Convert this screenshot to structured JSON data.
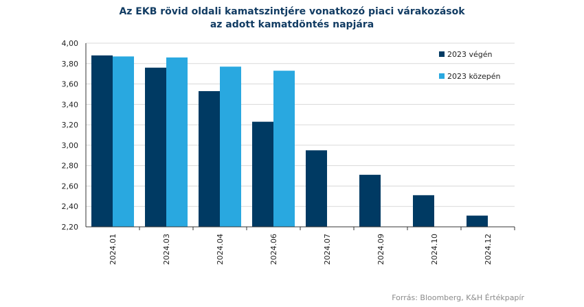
{
  "chart_data": {
    "type": "bar",
    "title": [
      "Az EKB rövid oldali kamatszintjére vonatkozó piaci várakozások",
      "az adott kamatdöntés napjára"
    ],
    "categories": [
      "2024.01",
      "2024.03",
      "2024.04",
      "2024.06",
      "2024.07",
      "2024.09",
      "2024.10",
      "2024.12"
    ],
    "series": [
      {
        "name": "2023 végén",
        "color": "#003a63",
        "values": [
          3.88,
          3.76,
          3.53,
          3.23,
          2.95,
          2.71,
          2.51,
          2.31
        ]
      },
      {
        "name": "2023 közepén",
        "color": "#29a8e0",
        "values": [
          3.87,
          3.86,
          3.77,
          3.73,
          null,
          null,
          null,
          null
        ]
      }
    ],
    "yticks": [
      "4,00",
      "3,80",
      "3,60",
      "3,40",
      "3,20",
      "3,00",
      "2,80",
      "2,60",
      "2,40",
      "2,20"
    ],
    "ylim": [
      2.2,
      4.0
    ],
    "grid": true,
    "legend": "top-right",
    "source": "Forrás: Bloomberg, K&H Értékpapír"
  }
}
